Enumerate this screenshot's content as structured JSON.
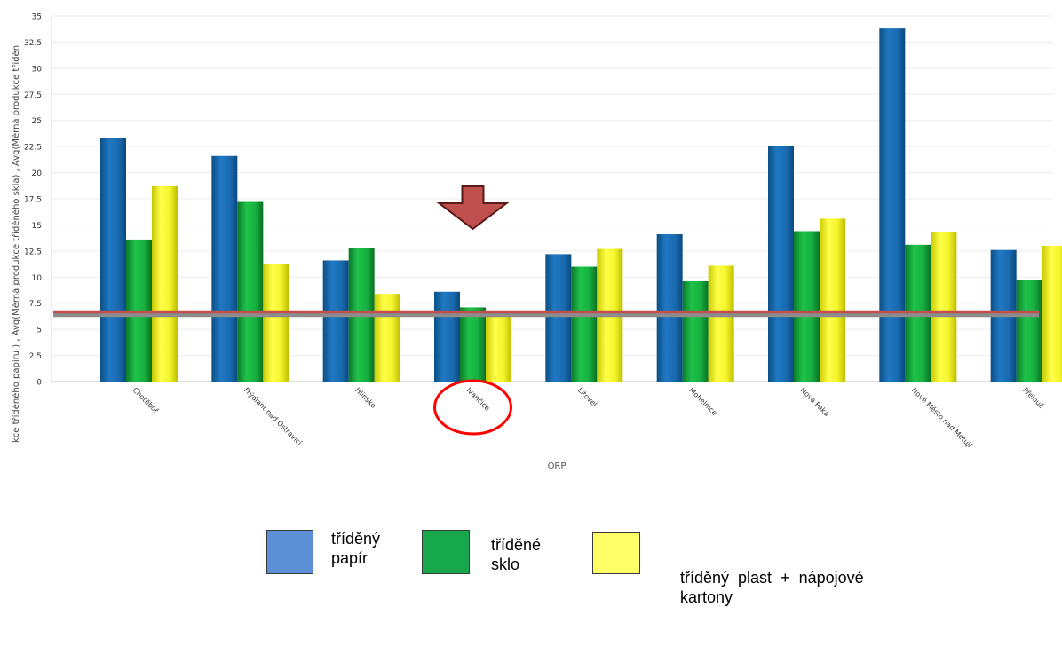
{
  "chart_data": {
    "type": "bar",
    "title": "",
    "xlabel": "ORP",
    "ylabel": "kce tříděného papíru ) , Avg(Měrná produkce tříděného skla) , Avg(Měrná produkce tříděn",
    "ylim": [
      0,
      35
    ],
    "yticks": [
      "0",
      "2.5",
      "5",
      "7.5",
      "10",
      "12.5",
      "15",
      "17.5",
      "20",
      "22.5",
      "25",
      "27.5",
      "30",
      "32.5",
      "35"
    ],
    "grid": true,
    "legend_position": "bottom",
    "categories": [
      "Chotěboř",
      "Frýdlant nad Ostravicí",
      "Hlinsko",
      "Ivančice",
      "Litovel",
      "Mohelnice",
      "Nová Paka",
      "Nové Město nad Metují",
      "Přelouč"
    ],
    "series": [
      {
        "name": "tříděný papír",
        "color": "#1f6db0",
        "values": [
          23.3,
          21.6,
          11.6,
          8.6,
          12.2,
          14.1,
          22.6,
          33.8,
          12.6
        ]
      },
      {
        "name": "tříděné sklo",
        "color": "#14a83a",
        "values": [
          13.6,
          17.2,
          12.8,
          7.1,
          11.0,
          9.6,
          14.4,
          13.1,
          9.7
        ]
      },
      {
        "name": "tříděný plast + nápojové kartony",
        "color": "#f0f020",
        "values": [
          18.7,
          11.3,
          8.4,
          6.6,
          12.7,
          11.1,
          15.6,
          14.3,
          13.0
        ]
      }
    ],
    "reference_lines": [
      {
        "value": 6.6,
        "color": "#c0504d"
      },
      {
        "value": 6.35,
        "color": "#8c8c8c"
      }
    ],
    "annotations": [
      {
        "type": "arrow-down",
        "category": "Ivančice",
        "color": "#c0504d"
      },
      {
        "type": "circle",
        "category": "Ivančice",
        "color": "#ff0000"
      }
    ]
  },
  "legend": {
    "items": [
      {
        "line1": "tříděný",
        "line2": "papír",
        "color": "#5b8fd6"
      },
      {
        "line1": "tříděné",
        "line2": "sklo",
        "color": "#16a84a"
      },
      {
        "line1": "tříděný  plast  +  nápojové",
        "line2": "kartony",
        "color": "#ffff66"
      }
    ]
  }
}
